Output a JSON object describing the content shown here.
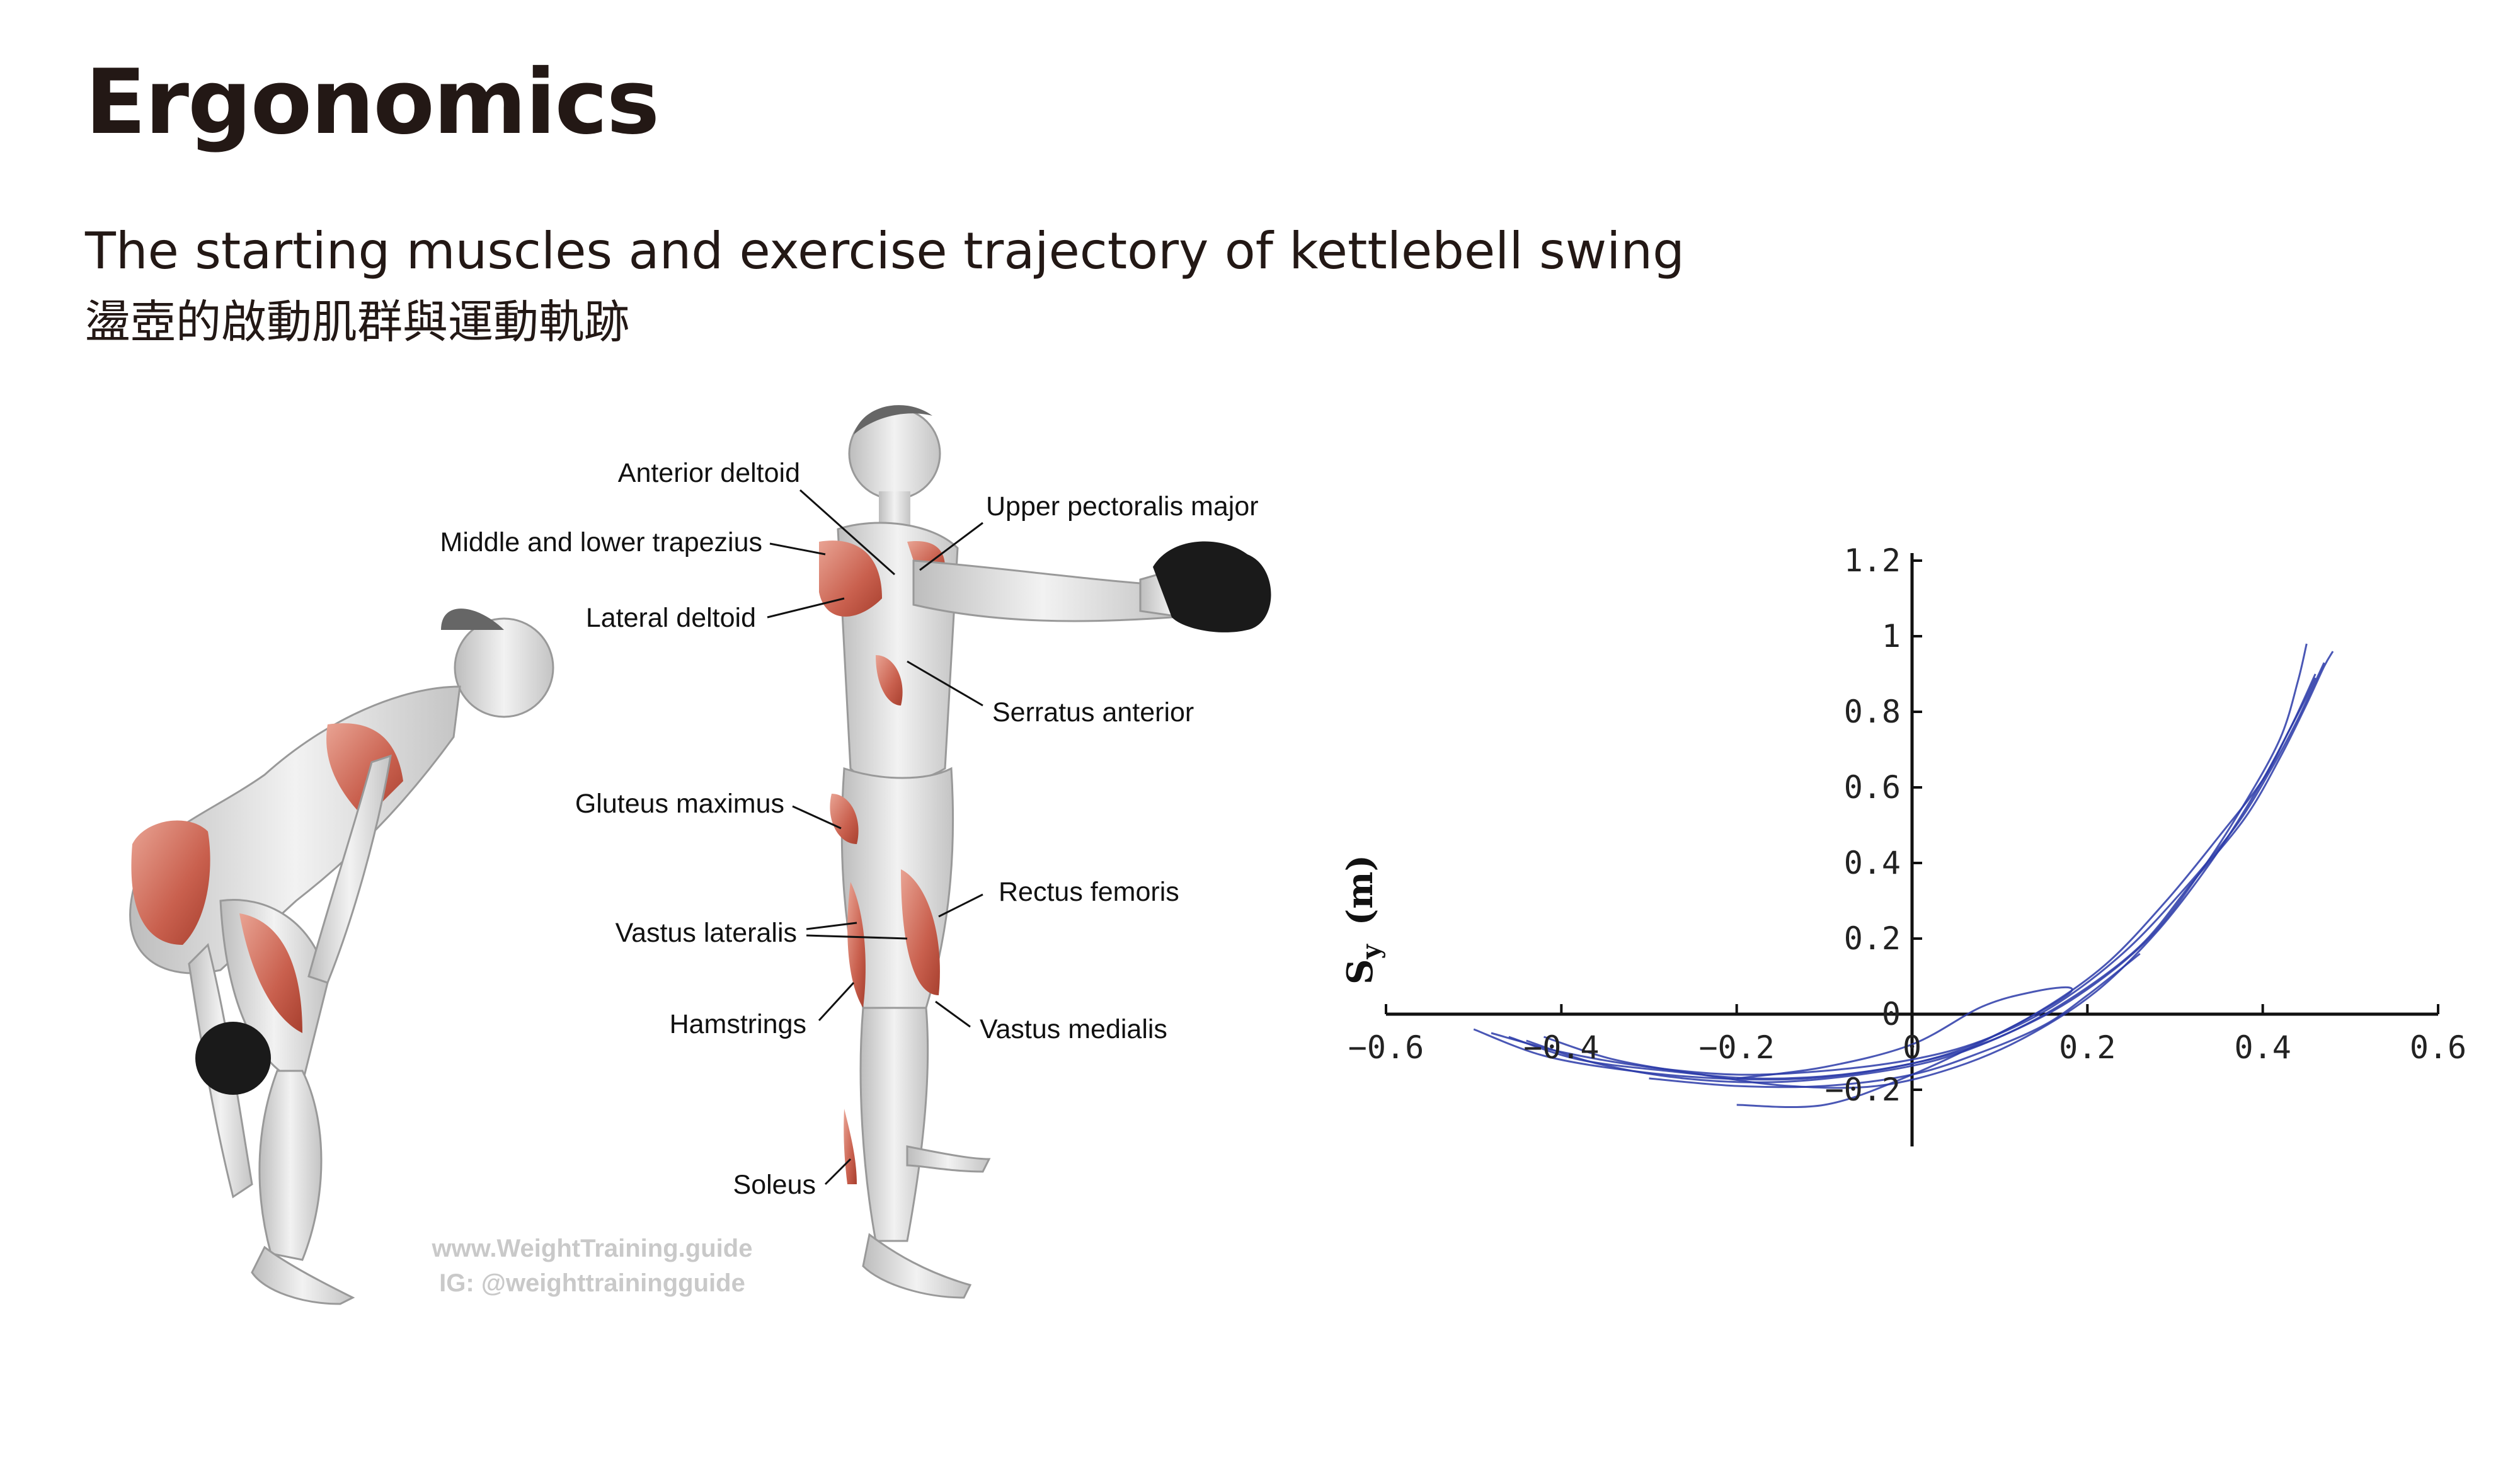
{
  "page": {
    "title": "Ergonomics",
    "subtitle": "The starting muscles and exercise trajectory of kettlebell swing",
    "subtitle_zh": "盪壺的啟動肌群與運動軌跡"
  },
  "illustration": {
    "labels": {
      "anterior_deltoid": "Anterior deltoid",
      "middle_lower_trapezius": "Middle and lower trapezius",
      "lateral_deltoid": "Lateral deltoid",
      "upper_pectoralis_major": "Upper pectoralis major",
      "serratus_anterior": "Serratus anterior",
      "gluteus_maximus": "Gluteus maximus",
      "vastus_lateralis": "Vastus lateralis",
      "rectus_femoris": "Rectus femoris",
      "hamstrings": "Hamstrings",
      "vastus_medialis": "Vastus medialis",
      "soleus": "Soleus"
    },
    "watermark": {
      "line1": "www.WeightTraining.guide",
      "line2": "IG: @weighttrainingguide"
    }
  },
  "chart_data": {
    "type": "line",
    "title": "",
    "xlabel": "",
    "ylabel": "S",
    "ylabel_sub": "y",
    "ylabel_unit": "(m)",
    "xlim": [
      -0.6,
      0.6
    ],
    "ylim": [
      -0.35,
      1.25
    ],
    "x_ticks": [
      "−0.6",
      "−0.4",
      "−0.2",
      "0",
      "0.2",
      "0.4",
      "0.6"
    ],
    "y_ticks": [
      "−0.2",
      "0",
      "0.2",
      "0.4",
      "0.6",
      "0.8",
      "1",
      "1.2"
    ],
    "grid": false,
    "series_color": "#2a3aa8",
    "series": [
      {
        "x": [
          -0.48,
          -0.4,
          -0.3,
          -0.2,
          -0.1,
          0.0,
          0.08,
          0.16,
          0.24,
          0.31,
          0.37,
          0.41,
          0.44,
          0.46,
          0.47
        ],
        "y": [
          -0.05,
          -0.1,
          -0.14,
          -0.16,
          -0.15,
          -0.12,
          -0.07,
          0.02,
          0.16,
          0.33,
          0.5,
          0.65,
          0.78,
          0.88,
          0.93
        ]
      },
      {
        "x": [
          -0.46,
          -0.38,
          -0.28,
          -0.18,
          -0.08,
          0.02,
          0.1,
          0.18,
          0.26,
          0.32,
          0.38,
          0.42,
          0.45,
          0.47,
          0.48
        ],
        "y": [
          -0.06,
          -0.12,
          -0.15,
          -0.17,
          -0.16,
          -0.12,
          -0.06,
          0.04,
          0.18,
          0.35,
          0.52,
          0.68,
          0.82,
          0.92,
          0.96
        ]
      },
      {
        "x": [
          -0.44,
          -0.36,
          -0.26,
          -0.16,
          -0.06,
          0.03,
          0.11,
          0.19,
          0.27,
          0.33,
          0.38,
          0.42,
          0.44,
          0.45
        ],
        "y": [
          -0.07,
          -0.13,
          -0.17,
          -0.18,
          -0.16,
          -0.12,
          -0.05,
          0.05,
          0.2,
          0.38,
          0.56,
          0.73,
          0.88,
          0.98
        ]
      },
      {
        "x": [
          -0.5,
          -0.42,
          -0.32,
          -0.22,
          -0.12,
          -0.02,
          0.06,
          0.14,
          0.22,
          0.29,
          0.35,
          0.4,
          0.43,
          0.45,
          0.46
        ],
        "y": [
          -0.04,
          -0.11,
          -0.15,
          -0.17,
          -0.17,
          -0.14,
          -0.09,
          0.0,
          0.13,
          0.3,
          0.47,
          0.62,
          0.75,
          0.84,
          0.89
        ]
      },
      {
        "x": [
          -0.42,
          -0.34,
          -0.24,
          -0.14,
          -0.04,
          0.05,
          0.13,
          0.21,
          0.28,
          0.34,
          0.39,
          0.43,
          0.46
        ],
        "y": [
          -0.06,
          -0.12,
          -0.16,
          -0.19,
          -0.19,
          -0.14,
          -0.06,
          0.06,
          0.22,
          0.4,
          0.58,
          0.75,
          0.9
        ]
      },
      {
        "x": [
          -0.2,
          -0.1,
          0.0,
          0.08,
          0.14,
          0.18,
          0.17,
          0.1,
          0.0,
          -0.1,
          -0.2
        ],
        "y": [
          -0.17,
          -0.14,
          -0.08,
          0.02,
          0.06,
          0.07,
          0.04,
          -0.05,
          -0.16,
          -0.24,
          -0.24
        ]
      },
      {
        "x": [
          -0.3,
          -0.2,
          -0.1,
          0.0,
          0.08,
          0.15,
          0.2,
          0.26
        ],
        "y": [
          -0.17,
          -0.19,
          -0.19,
          -0.16,
          -0.1,
          -0.03,
          0.05,
          0.16
        ]
      }
    ]
  }
}
